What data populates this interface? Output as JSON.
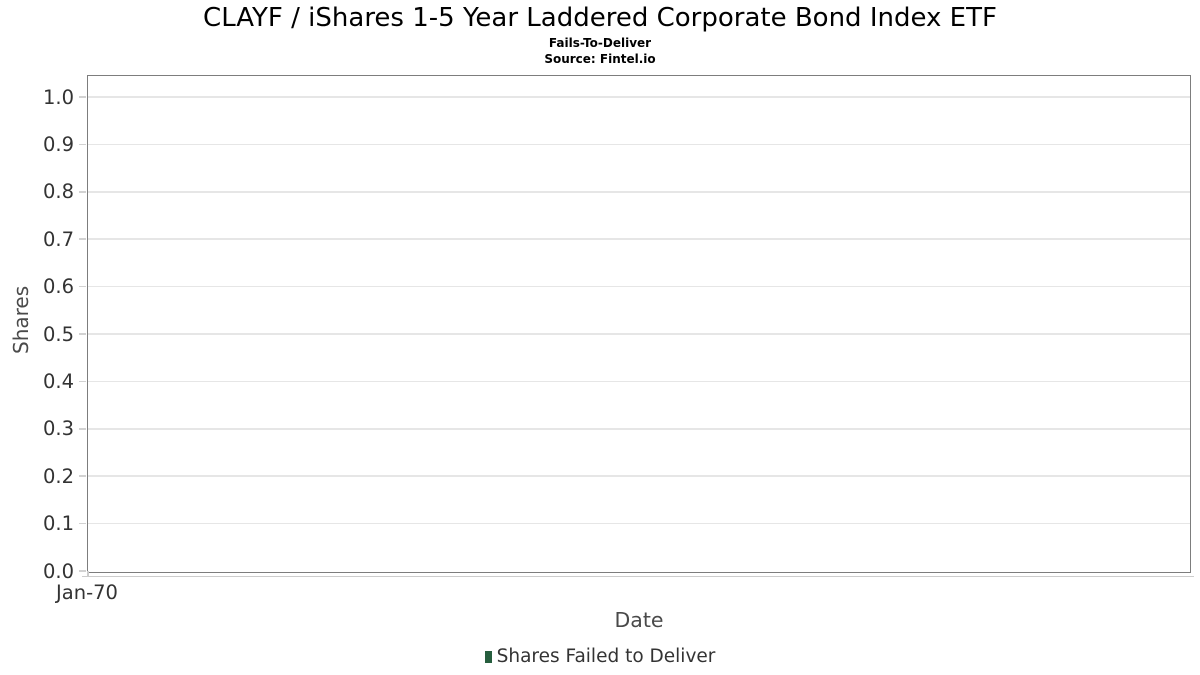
{
  "header": {
    "title": "CLAYF / iShares 1-5 Year Laddered Corporate Bond Index ETF",
    "subtitle": "Fails-To-Deliver",
    "source": "Source: Fintel.io"
  },
  "axes": {
    "y_title": "Shares",
    "x_title": "Date"
  },
  "legend": {
    "items": [
      {
        "label": "Shares Failed to Deliver",
        "marker_color": "#265e3e"
      }
    ]
  },
  "colors": {
    "background": "#ffffff",
    "title_text": "#000000",
    "tick_text": "#333333",
    "axis_title_text": "#4a4a4a",
    "plot_border": "#7d7d7d",
    "gridline": "#e6e6e6",
    "axis_line": "#cccccc",
    "legend_marker_green": "#265e3e"
  },
  "chart_data": {
    "type": "bar",
    "title": "CLAYF / iShares 1-5 Year Laddered Corporate Bond Index ETF",
    "subtitle": "Fails-To-Deliver",
    "source": "Source: Fintel.io",
    "xlabel": "Date",
    "ylabel": "Shares",
    "ylim": [
      0.0,
      1.0
    ],
    "yticks": [
      0.0,
      0.1,
      0.2,
      0.3,
      0.4,
      0.5,
      0.6,
      0.7,
      0.8,
      0.9,
      1.0
    ],
    "ytick_labels": [
      "0.0",
      "0.1",
      "0.2",
      "0.3",
      "0.4",
      "0.5",
      "0.6",
      "0.7",
      "0.8",
      "0.9",
      "1.0"
    ],
    "xtick_labels": [
      "Jan-70"
    ],
    "grid": "horizontal",
    "legend_position": "bottom-center",
    "series": [
      {
        "name": "Shares Failed to Deliver",
        "color": "#265e3e",
        "categories": [],
        "values": []
      }
    ]
  }
}
